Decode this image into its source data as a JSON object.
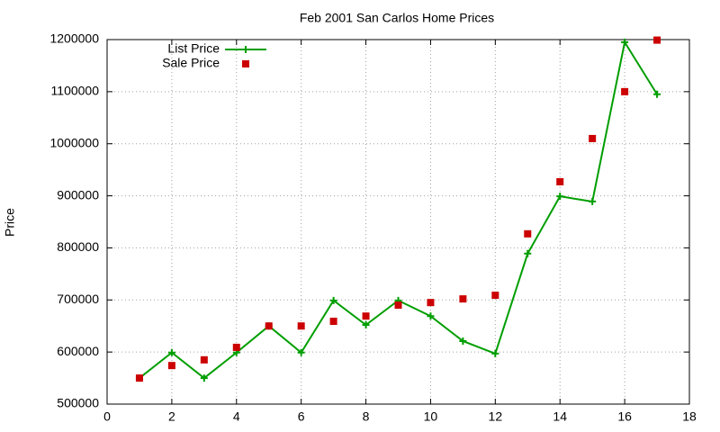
{
  "chart_data": {
    "type": "line",
    "title": "Feb 2001 San Carlos Home Prices",
    "y_label": "Price",
    "x": [
      1,
      2,
      3,
      4,
      5,
      6,
      7,
      8,
      9,
      10,
      11,
      12,
      13,
      14,
      15,
      16,
      17
    ],
    "series": [
      {
        "name": "List Price",
        "color": "#009e00",
        "mode": "lines+markers",
        "values": [
          550000,
          599000,
          550000,
          599000,
          650000,
          599000,
          699000,
          652000,
          699000,
          669000,
          621000,
          597000,
          789000,
          899000,
          889000,
          1195000,
          1095000
        ]
      },
      {
        "name": "Sale Price",
        "color": "#cc0000",
        "mode": "markers",
        "values": [
          550000,
          574000,
          585000,
          609000,
          650000,
          650000,
          659000,
          669000,
          690000,
          695000,
          702000,
          709000,
          827000,
          927000,
          1010000,
          1100000,
          1199000
        ]
      }
    ],
    "xlim": [
      0,
      18
    ],
    "xticks": [
      0,
      2,
      4,
      6,
      8,
      10,
      12,
      14,
      16,
      18
    ],
    "ylim": [
      500000,
      1200000
    ],
    "yticks": [
      500000,
      600000,
      700000,
      800000,
      900000,
      1000000,
      1100000,
      1200000
    ],
    "grid": true,
    "legend": "top left"
  }
}
